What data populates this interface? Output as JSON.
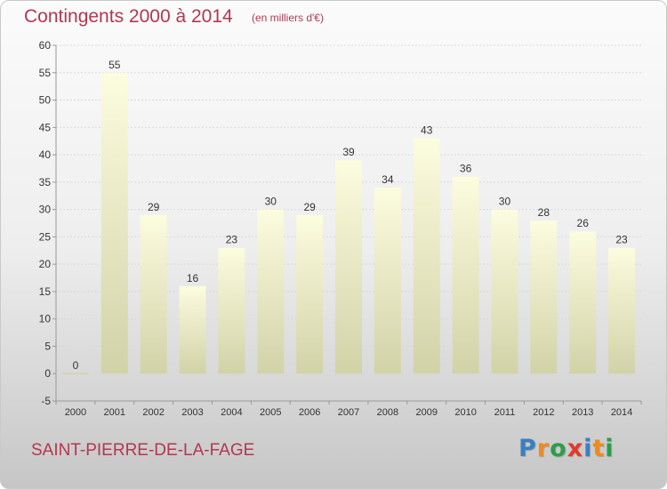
{
  "header": {
    "title": "Contingents 2000 à 2014",
    "subtitle": "(en milliers d'€)"
  },
  "footer": {
    "place": "SAINT-PIERRE-DE-LA-FAGE",
    "logo_letters": [
      "P",
      "r",
      "o",
      "x",
      "i",
      "t",
      "i"
    ],
    "logo_colors": [
      "#3a7fc2",
      "#f08a1c",
      "#2e9d4a",
      "#e23a2a",
      "#3a7fc2",
      "#f08a1c",
      "#2e9d4a"
    ]
  },
  "colors": {
    "bar_top": "#fcfcdf",
    "bar_bottom": "#d2d2a8",
    "grid": "#d9d9d9",
    "axis": "#999999"
  },
  "chart_data": {
    "type": "bar",
    "title": "Contingents 2000 à 2014",
    "subtitle": "(en milliers d'€)",
    "categories": [
      "2000",
      "2001",
      "2002",
      "2003",
      "2004",
      "2005",
      "2006",
      "2007",
      "2008",
      "2009",
      "2010",
      "2011",
      "2012",
      "2013",
      "2014"
    ],
    "values": [
      0,
      55,
      29,
      16,
      23,
      30,
      29,
      39,
      34,
      43,
      36,
      30,
      28,
      26,
      23
    ],
    "ylim": [
      -5,
      60
    ],
    "yticks": [
      -5,
      0,
      5,
      10,
      15,
      20,
      25,
      30,
      35,
      40,
      45,
      50,
      55,
      60
    ],
    "grid": true,
    "xlabel": "",
    "ylabel": ""
  }
}
